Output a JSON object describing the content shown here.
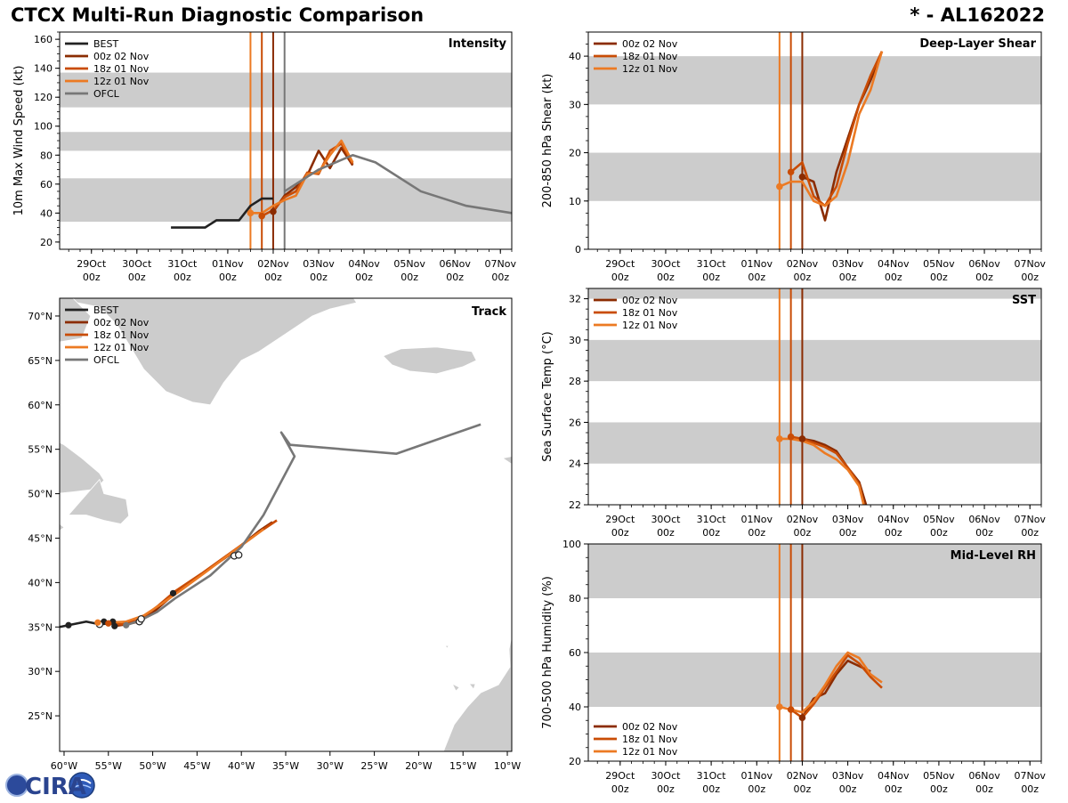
{
  "header": {
    "title": "CTCX Multi-Run Diagnostic Comparison",
    "storm_id": "* - AL162022"
  },
  "logo": {
    "text": "CIRA"
  },
  "colors": {
    "best": "#222222",
    "r00z02": "#8b2c02",
    "r18z01": "#c94c05",
    "r12z01": "#ec7a23",
    "ofcl": "#777777",
    "band": "#cccccc",
    "land": "#cccccc"
  },
  "time_ticks": {
    "labels": [
      "29Oct\n00z",
      "30Oct\n00z",
      "31Oct\n00z",
      "01Nov\n00z",
      "02Nov\n00z",
      "03Nov\n00z",
      "04Nov\n00z",
      "05Nov\n00z",
      "06Nov\n00z",
      "07Nov\n00z"
    ],
    "positions_days": [
      0,
      1,
      2,
      3,
      4,
      5,
      6,
      7,
      8,
      9
    ],
    "range_days": [
      -0.7,
      9.25
    ]
  },
  "chart_data": [
    {
      "id": "intensity",
      "type": "line",
      "panel_label": "Intensity",
      "ylabel": "10m Max Wind Speed (kt)",
      "ylim": [
        15,
        165
      ],
      "yticks": [
        20,
        40,
        60,
        80,
        100,
        120,
        140,
        160
      ],
      "bands": [
        [
          34,
          64
        ],
        [
          83,
          96
        ],
        [
          113,
          137
        ]
      ],
      "vlines": [
        {
          "x": 4.0,
          "color": "r00z02"
        },
        {
          "x": 3.75,
          "color": "r18z01"
        },
        {
          "x": 3.5,
          "color": "r12z01"
        },
        {
          "x": 4.25,
          "color": "ofcl"
        }
      ],
      "legend": [
        "BEST",
        "00z 02 Nov",
        "18z 01 Nov",
        "12z 01 Nov",
        "OFCL"
      ],
      "legend_colors": [
        "best",
        "r00z02",
        "r18z01",
        "r12z01",
        "ofcl"
      ],
      "series": [
        {
          "name": "BEST",
          "color": "best",
          "x": [
            1.75,
            2.5,
            2.75,
            3.0,
            3.25,
            3.5,
            3.75,
            4.0
          ],
          "y": [
            30,
            30,
            35,
            35,
            35,
            45,
            50,
            50
          ]
        },
        {
          "name": "00z 02 Nov",
          "color": "r00z02",
          "x": [
            4.0,
            4.25,
            4.5,
            4.75,
            5.0,
            5.25,
            5.5,
            5.75
          ],
          "y": [
            41,
            52,
            58,
            66,
            83,
            71,
            85,
            73
          ]
        },
        {
          "name": "18z 01 Nov",
          "color": "r18z01",
          "x": [
            3.75,
            4.0,
            4.25,
            4.5,
            4.75,
            5.0,
            5.25,
            5.5,
            5.75
          ],
          "y": [
            38,
            42,
            51,
            55,
            68,
            67,
            83,
            88,
            74
          ]
        },
        {
          "name": "12z 01 Nov",
          "color": "r12z01",
          "x": [
            3.5,
            3.75,
            4.0,
            4.25,
            4.5,
            4.75,
            5.0,
            5.25,
            5.5,
            5.75
          ],
          "y": [
            40,
            40,
            45,
            49,
            52,
            67,
            68,
            80,
            90,
            75
          ]
        },
        {
          "name": "OFCL",
          "color": "ofcl",
          "x": [
            4.25,
            5.0,
            5.75,
            6.25,
            7.25,
            8.25,
            9.25
          ],
          "y": [
            55,
            70,
            80,
            75,
            55,
            45,
            40
          ]
        }
      ],
      "markers": [
        {
          "x": 3.5,
          "y": 40,
          "color": "r12z01"
        },
        {
          "x": 3.75,
          "y": 38,
          "color": "r18z01"
        },
        {
          "x": 4.0,
          "y": 41,
          "color": "r00z02"
        }
      ]
    },
    {
      "id": "shear",
      "type": "line",
      "panel_label": "Deep-Layer Shear",
      "ylabel": "200-850 hPa Shear (kt)",
      "ylim": [
        0,
        45
      ],
      "yticks": [
        0,
        10,
        20,
        30,
        40
      ],
      "bands": [
        [
          10,
          20
        ],
        [
          30,
          40
        ]
      ],
      "vlines": [
        {
          "x": 4.0,
          "color": "r00z02"
        },
        {
          "x": 3.75,
          "color": "r18z01"
        },
        {
          "x": 3.5,
          "color": "r12z01"
        }
      ],
      "legend": [
        "00z 02 Nov",
        "18z 01 Nov",
        "12z 01 Nov"
      ],
      "legend_colors": [
        "r00z02",
        "r18z01",
        "r12z01"
      ],
      "series": [
        {
          "name": "00z 02 Nov",
          "color": "r00z02",
          "x": [
            4.0,
            4.25,
            4.5,
            4.75,
            5.0,
            5.25,
            5.5,
            5.75
          ],
          "y": [
            15,
            14,
            6,
            16,
            23,
            30,
            35,
            41
          ]
        },
        {
          "name": "18z 01 Nov",
          "color": "r18z01",
          "x": [
            3.75,
            4.0,
            4.25,
            4.5,
            4.75,
            5.0,
            5.25,
            5.5,
            5.75
          ],
          "y": [
            16,
            18,
            11,
            9,
            13,
            22,
            30,
            36,
            41
          ]
        },
        {
          "name": "12z 01 Nov",
          "color": "r12z01",
          "x": [
            3.5,
            3.75,
            4.0,
            4.25,
            4.5,
            4.75,
            5.0,
            5.25,
            5.5,
            5.75
          ],
          "y": [
            13,
            14,
            14,
            10,
            9,
            11,
            18,
            28,
            33,
            41
          ]
        }
      ],
      "markers": [
        {
          "x": 3.5,
          "y": 13,
          "color": "r12z01"
        },
        {
          "x": 3.75,
          "y": 16,
          "color": "r18z01"
        },
        {
          "x": 4.0,
          "y": 15,
          "color": "r00z02"
        }
      ]
    },
    {
      "id": "sst",
      "type": "line",
      "panel_label": "SST",
      "ylabel": "Sea Surface Temp (°C)",
      "ylim": [
        22,
        32.5
      ],
      "yticks": [
        22,
        24,
        26,
        28,
        30,
        32
      ],
      "bands": [
        [
          24,
          26
        ],
        [
          28,
          30
        ],
        [
          32,
          34
        ]
      ],
      "vlines": [
        {
          "x": 4.0,
          "color": "r00z02"
        },
        {
          "x": 3.75,
          "color": "r18z01"
        },
        {
          "x": 3.5,
          "color": "r12z01"
        }
      ],
      "legend": [
        "00z 02 Nov",
        "18z 01 Nov",
        "12z 01 Nov"
      ],
      "legend_colors": [
        "r00z02",
        "r18z01",
        "r12z01"
      ],
      "series": [
        {
          "name": "00z 02 Nov",
          "color": "r00z02",
          "x": [
            4.0,
            4.25,
            4.5,
            4.75,
            5.0,
            5.25,
            5.4
          ],
          "y": [
            25.2,
            25.1,
            24.9,
            24.6,
            23.8,
            23.1,
            22.0
          ]
        },
        {
          "name": "18z 01 Nov",
          "color": "r18z01",
          "x": [
            3.75,
            4.0,
            4.25,
            4.5,
            4.75,
            5.0,
            5.25,
            5.35
          ],
          "y": [
            25.3,
            25.2,
            25.0,
            24.8,
            24.5,
            23.8,
            23.0,
            22.0
          ]
        },
        {
          "name": "12z 01 Nov",
          "color": "r12z01",
          "x": [
            3.5,
            3.75,
            4.0,
            4.25,
            4.5,
            4.75,
            5.0,
            5.25,
            5.35
          ],
          "y": [
            25.2,
            25.2,
            25.1,
            24.9,
            24.5,
            24.2,
            23.7,
            22.9,
            22.0
          ]
        }
      ],
      "markers": [
        {
          "x": 3.5,
          "y": 25.2,
          "color": "r12z01"
        },
        {
          "x": 3.75,
          "y": 25.3,
          "color": "r18z01"
        },
        {
          "x": 4.0,
          "y": 25.2,
          "color": "r00z02"
        }
      ]
    },
    {
      "id": "rh",
      "type": "line",
      "panel_label": "Mid-Level RH",
      "ylabel": "700-500 hPa Humidity (%)",
      "ylim": [
        20,
        100
      ],
      "yticks": [
        20,
        40,
        60,
        80,
        100
      ],
      "bands": [
        [
          40,
          60
        ],
        [
          80,
          100
        ]
      ],
      "vlines": [
        {
          "x": 4.0,
          "color": "r00z02"
        },
        {
          "x": 3.75,
          "color": "r18z01"
        },
        {
          "x": 3.5,
          "color": "r12z01"
        }
      ],
      "legend": [
        "00z 02 Nov",
        "18z 01 Nov",
        "12z 01 Nov"
      ],
      "legend_colors": [
        "r00z02",
        "r18z01",
        "r12z01"
      ],
      "series": [
        {
          "name": "00z 02 Nov",
          "color": "r00z02",
          "x": [
            4.0,
            4.25,
            4.5,
            4.75,
            5.0,
            5.25,
            5.5
          ],
          "y": [
            36,
            43,
            45,
            52,
            57,
            55,
            53
          ]
        },
        {
          "name": "18z 01 Nov",
          "color": "r18z01",
          "x": [
            3.75,
            4.0,
            4.25,
            4.5,
            4.75,
            5.0,
            5.25,
            5.5,
            5.75
          ],
          "y": [
            39,
            36,
            41,
            47,
            53,
            59,
            56,
            51,
            47
          ]
        },
        {
          "name": "12z 01 Nov",
          "color": "r12z01",
          "x": [
            3.5,
            3.75,
            4.0,
            4.25,
            4.5,
            4.75,
            5.0,
            5.25,
            5.5,
            5.75
          ],
          "y": [
            40,
            39,
            38,
            42,
            48,
            55,
            60,
            58,
            52,
            49
          ]
        }
      ],
      "markers": [
        {
          "x": 3.5,
          "y": 40,
          "color": "r12z01"
        },
        {
          "x": 3.75,
          "y": 39,
          "color": "r18z01"
        },
        {
          "x": 4.0,
          "y": 36,
          "color": "r00z02"
        }
      ]
    },
    {
      "id": "track",
      "type": "scatter",
      "panel_label": "Track",
      "lon_range": [
        -60.5,
        -9.5
      ],
      "lat_range": [
        21,
        72
      ],
      "lon_ticks": [
        -60,
        -55,
        -50,
        -45,
        -40,
        -35,
        -30,
        -25,
        -20,
        -15,
        -10
      ],
      "lon_labels": [
        "60°W",
        "55°W",
        "50°W",
        "45°W",
        "40°W",
        "35°W",
        "30°W",
        "25°W",
        "20°W",
        "15°W",
        "10°W"
      ],
      "lat_ticks": [
        25,
        30,
        35,
        40,
        45,
        50,
        55,
        60,
        65,
        70
      ],
      "lat_labels": [
        "25°N",
        "30°N",
        "35°N",
        "40°N",
        "45°N",
        "50°N",
        "55°N",
        "60°N",
        "65°N",
        "70°N"
      ],
      "legend": [
        "BEST",
        "00z 02 Nov",
        "18z 01 Nov",
        "12z 01 Nov",
        "OFCL"
      ],
      "legend_colors": [
        "best",
        "r00z02",
        "r18z01",
        "r12z01",
        "ofcl"
      ],
      "series": [
        {
          "name": "BEST",
          "color": "best",
          "lon": [
            -60.5,
            -59.5,
            -57.5,
            -56.0,
            -55.0,
            -54.5
          ],
          "lat": [
            35.0,
            35.2,
            35.6,
            35.3,
            35.4,
            35.4
          ]
        },
        {
          "name": "00z 02 Nov",
          "color": "r00z02",
          "lon": [
            -54.3,
            -53.0,
            -51.5,
            -50.0,
            -47.7,
            -45.0,
            -41.5,
            -38.0,
            -36.5
          ],
          "lat": [
            35.1,
            35.3,
            35.6,
            36.6,
            38.6,
            40.6,
            43.0,
            45.8,
            46.8
          ]
        },
        {
          "name": "18z 01 Nov",
          "color": "r18z01",
          "lon": [
            -55.0,
            -53.5,
            -51.5,
            -49.5,
            -47.5,
            -44.5,
            -41.0,
            -37.5,
            -36.0
          ],
          "lat": [
            35.4,
            35.3,
            35.8,
            37.3,
            39.0,
            41.0,
            43.5,
            46.0,
            47.0
          ]
        },
        {
          "name": "12z 01 Nov",
          "color": "r12z01",
          "lon": [
            -56.5,
            -55.0,
            -53.0,
            -51.0,
            -49.0,
            -47.0,
            -44.0,
            -40.5,
            -37.5
          ],
          "lat": [
            35.6,
            35.5,
            35.6,
            36.3,
            37.6,
            39.0,
            41.2,
            43.8,
            46.0
          ]
        },
        {
          "name": "OFCL",
          "color": "ofcl",
          "lon": [
            -53.0,
            -51.5,
            -49.5,
            -47.5,
            -43.5,
            -40.0,
            -37.5,
            -34.0,
            -35.5,
            -34.5,
            -22.5,
            -13.0
          ],
          "lat": [
            35.2,
            35.7,
            36.7,
            38.2,
            40.8,
            44.0,
            47.6,
            54.2,
            56.9,
            55.5,
            54.5,
            57.8
          ]
        }
      ],
      "markers": [
        {
          "lon": -59.5,
          "lat": 35.2,
          "color": "best",
          "hollow": false
        },
        {
          "lon": -55.5,
          "lat": 35.6,
          "color": "best",
          "hollow": false
        },
        {
          "lon": -56.0,
          "lat": 35.3,
          "color": "best",
          "hollow": true
        },
        {
          "lon": -54.3,
          "lat": 35.1,
          "color": "best",
          "hollow": false
        },
        {
          "lon": -54.5,
          "lat": 35.6,
          "color": "best",
          "hollow": false
        },
        {
          "lon": -53.0,
          "lat": 35.2,
          "color": "ofcl",
          "hollow": false
        },
        {
          "lon": -51.5,
          "lat": 35.6,
          "color": "best",
          "hollow": true
        },
        {
          "lon": -51.3,
          "lat": 35.9,
          "color": "best",
          "hollow": true
        },
        {
          "lon": -47.7,
          "lat": 38.8,
          "color": "best",
          "hollow": false
        },
        {
          "lon": -40.8,
          "lat": 43.0,
          "color": "best",
          "hollow": true
        },
        {
          "lon": -40.3,
          "lat": 43.1,
          "color": "best",
          "hollow": true
        },
        {
          "lon": -56.2,
          "lat": 35.5,
          "color": "r12z01",
          "hollow": false
        },
        {
          "lon": -55.0,
          "lat": 35.4,
          "color": "r18z01",
          "hollow": false
        }
      ]
    }
  ]
}
